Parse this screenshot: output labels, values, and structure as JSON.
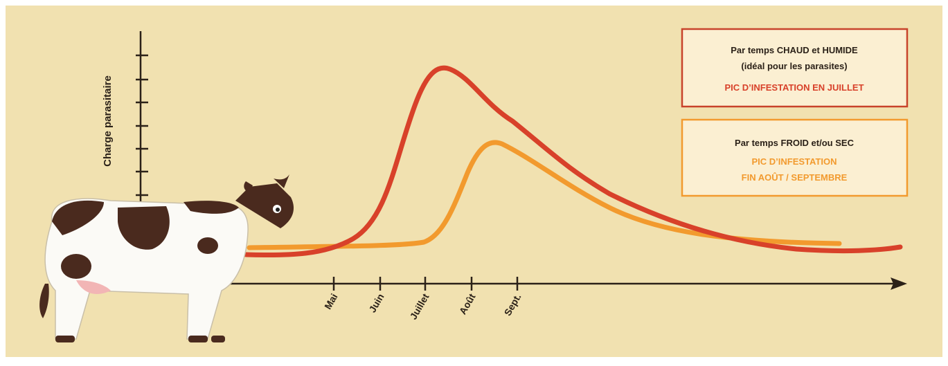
{
  "axis": {
    "y_label": "Charge parasitaire",
    "months": [
      "Mai",
      "Juin",
      "Juillet",
      "Août",
      "Sept."
    ]
  },
  "legend": [
    {
      "title": [
        "Par temps CHAUD et HUMIDE",
        "(idéal pour les parasites)"
      ],
      "note": [
        "PIC D’INFESTATION EN JUILLET"
      ]
    },
    {
      "title": [
        "Par temps FROID et/ou SEC"
      ],
      "note": [
        "PIC D’INFESTATION",
        "FIN AOÛT / SEPTEMBRE"
      ]
    }
  ]
}
